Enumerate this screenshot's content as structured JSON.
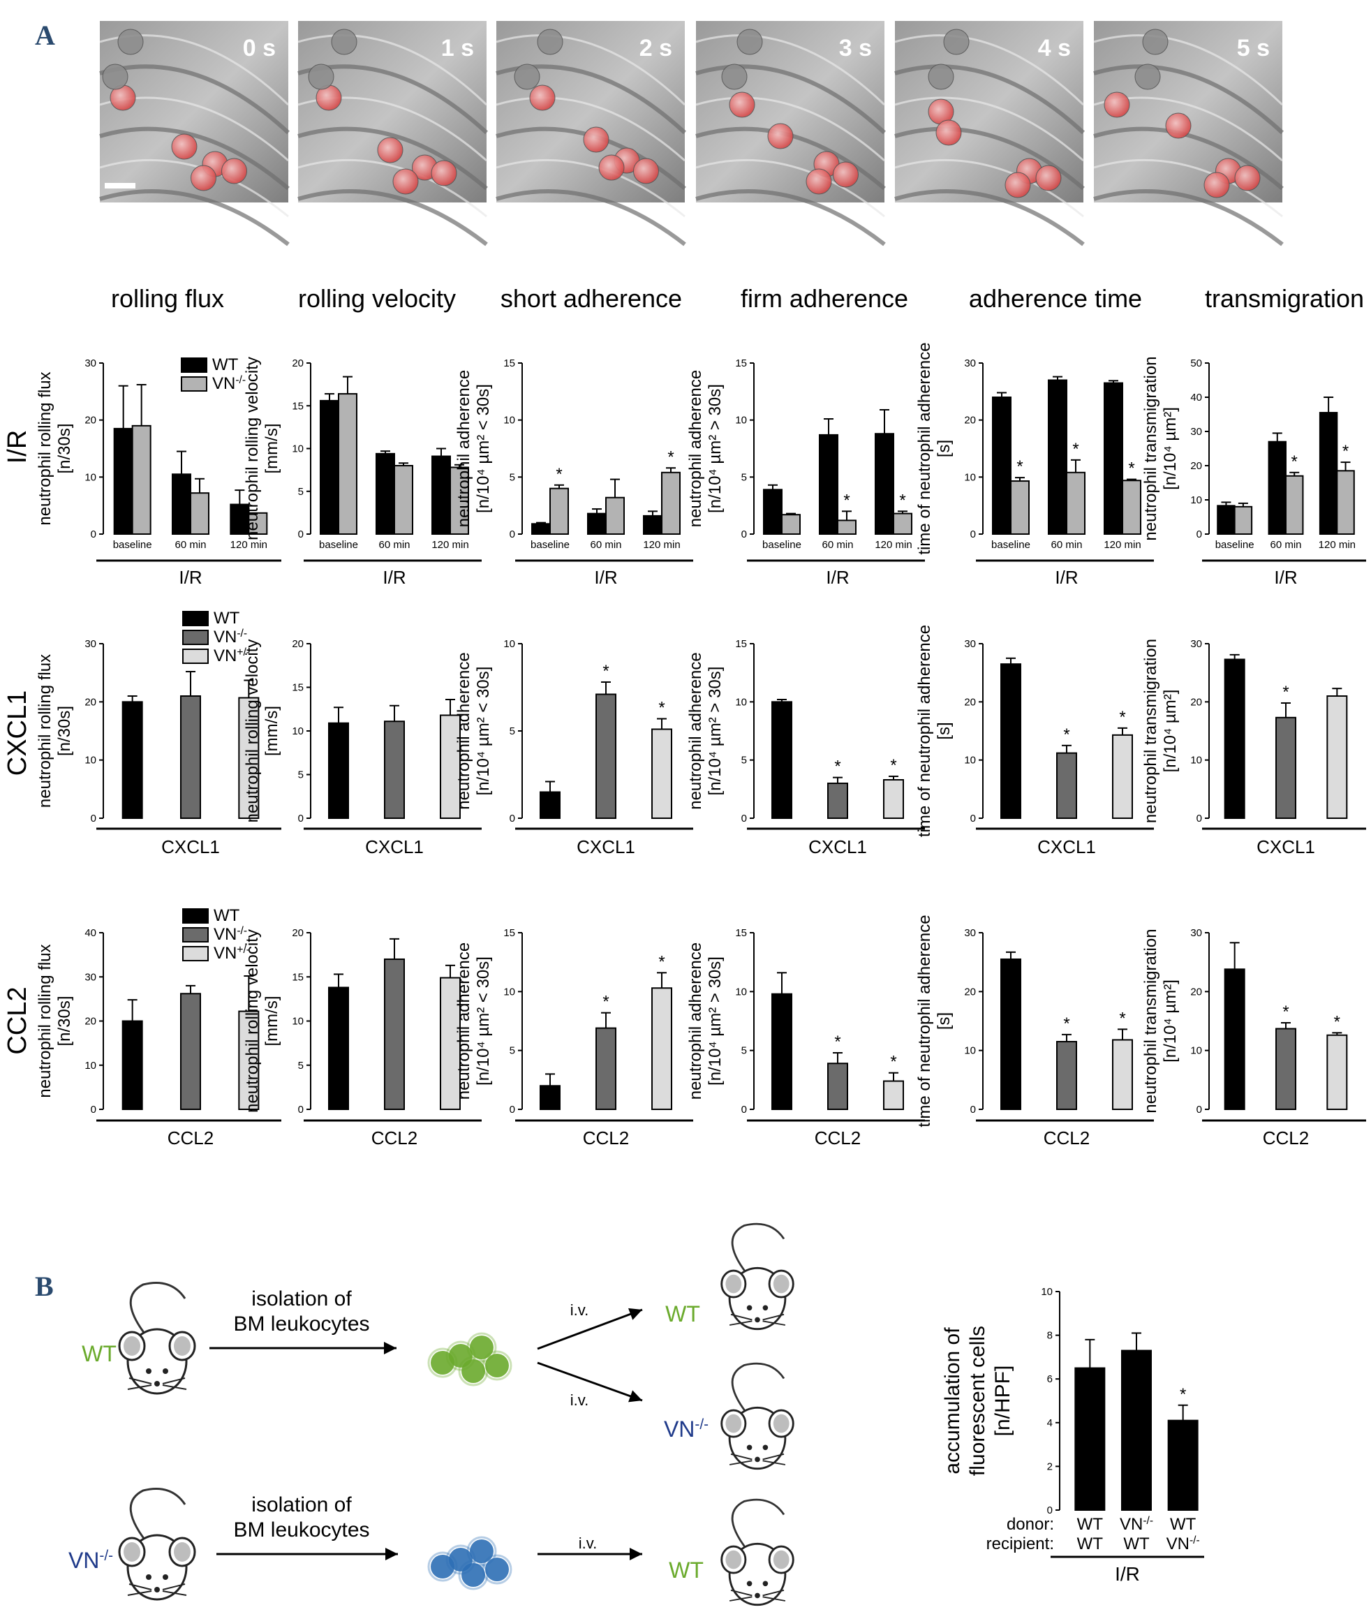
{
  "panel_a": {
    "letter": "A",
    "frames": [
      "0 s",
      "1 s",
      "2 s",
      "3 s",
      "4 s",
      "5 s"
    ],
    "columns": [
      "rolling flux",
      "rolling velocity",
      "short adherence",
      "firm adherence",
      "adherence time",
      "transmigration"
    ],
    "rows": [
      "I/R",
      "CXCL1",
      "CCL2"
    ]
  },
  "legend_row1": {
    "wt": "WT",
    "vn_ko": "VN-/-"
  },
  "legend_row23": {
    "wt": "WT",
    "vn_ko": "VN-/-",
    "vn_het": "VN+/-"
  },
  "colors": {
    "wt": "#000000",
    "vn_ko_row1": "#b3b3b3",
    "vn_ko": "#6b6b6b",
    "vn_het": "#dcdcdc",
    "wt_cells": "#6aaa2c",
    "vn_cells": "#2e6fb5",
    "label_green": "#6aaa2c",
    "label_blue": "#1f3a8a",
    "panel_letter": "#2a4a6e"
  },
  "panel_b": {
    "letter": "B",
    "isolation_line1": "isolation of",
    "isolation_line2": "BM leukocytes",
    "iv": "i.v.",
    "wt": "WT",
    "vn": "VN-/-"
  },
  "chart_data": [
    {
      "type": "bar",
      "row": "I/R",
      "column": "rolling flux",
      "ylabel": [
        "neutrophil rolling flux",
        "[n/30s]"
      ],
      "categories": [
        "baseline",
        "60 min",
        "120 min"
      ],
      "group_label": "I/R",
      "ylim": [
        0,
        30
      ],
      "yticks": [
        0,
        10,
        20,
        30
      ],
      "series": [
        {
          "name": "WT",
          "values": [
            18.5,
            10.5,
            5.2
          ],
          "errors": [
            7.5,
            4.0,
            2.5
          ],
          "sig": [
            false,
            false,
            false
          ]
        },
        {
          "name": "VN-/-",
          "values": [
            19.0,
            7.2,
            3.7
          ],
          "errors": [
            7.2,
            2.5,
            0
          ],
          "sig": [
            false,
            false,
            false
          ]
        }
      ]
    },
    {
      "type": "bar",
      "row": "I/R",
      "column": "rolling velocity",
      "ylabel": [
        "neutrophil rolling velocity",
        "[mm/s]"
      ],
      "categories": [
        "baseline",
        "60 min",
        "120 min"
      ],
      "group_label": "I/R",
      "ylim": [
        0,
        20
      ],
      "yticks": [
        0,
        5,
        10,
        15,
        20
      ],
      "series": [
        {
          "name": "WT",
          "values": [
            15.6,
            9.4,
            9.1
          ],
          "errors": [
            0.8,
            0.3,
            0.9
          ],
          "sig": [
            false,
            false,
            false
          ]
        },
        {
          "name": "VN-/-",
          "values": [
            16.4,
            8.0,
            7.8
          ],
          "errors": [
            2.0,
            0.3,
            0.3
          ],
          "sig": [
            false,
            false,
            false
          ]
        }
      ]
    },
    {
      "type": "bar",
      "row": "I/R",
      "column": "short adherence",
      "ylabel": [
        "neutrophil adherence",
        "[n/10⁴ µm² < 30s]"
      ],
      "categories": [
        "baseline",
        "60 min",
        "120 min"
      ],
      "group_label": "I/R",
      "ylim": [
        0,
        15
      ],
      "yticks": [
        0,
        5,
        10,
        15
      ],
      "series": [
        {
          "name": "WT",
          "values": [
            0.9,
            1.8,
            1.6
          ],
          "errors": [
            0.1,
            0.4,
            0.4
          ],
          "sig": [
            false,
            false,
            false
          ]
        },
        {
          "name": "VN-/-",
          "values": [
            4.0,
            3.2,
            5.4
          ],
          "errors": [
            0.3,
            1.6,
            0.4
          ],
          "sig": [
            true,
            false,
            true
          ]
        }
      ]
    },
    {
      "type": "bar",
      "row": "I/R",
      "column": "firm adherence",
      "ylabel": [
        "neutrophil adherence",
        "[n/10⁴ µm² > 30s]"
      ],
      "categories": [
        "baseline",
        "60 min",
        "120 min"
      ],
      "group_label": "I/R",
      "ylim": [
        0,
        15
      ],
      "yticks": [
        0,
        5,
        10,
        15
      ],
      "series": [
        {
          "name": "WT",
          "values": [
            3.9,
            8.7,
            8.8
          ],
          "errors": [
            0.4,
            1.4,
            2.1
          ],
          "sig": [
            false,
            false,
            false
          ]
        },
        {
          "name": "VN-/-",
          "values": [
            1.7,
            1.2,
            1.8
          ],
          "errors": [
            0.1,
            0.8,
            0.2
          ],
          "sig": [
            false,
            true,
            true
          ]
        }
      ]
    },
    {
      "type": "bar",
      "row": "I/R",
      "column": "adherence time",
      "ylabel": [
        "time of neutrophil adherence",
        "[s]"
      ],
      "categories": [
        "baseline",
        "60 min",
        "120 min"
      ],
      "group_label": "I/R",
      "ylim": [
        0,
        30
      ],
      "yticks": [
        0,
        10,
        20,
        30
      ],
      "series": [
        {
          "name": "WT",
          "values": [
            24.0,
            27.0,
            26.5
          ],
          "errors": [
            0.8,
            0.6,
            0.4
          ],
          "sig": [
            false,
            false,
            false
          ]
        },
        {
          "name": "VN-/-",
          "values": [
            9.3,
            10.8,
            9.4
          ],
          "errors": [
            0.6,
            2.2,
            0.2
          ],
          "sig": [
            true,
            true,
            true
          ]
        }
      ]
    },
    {
      "type": "bar",
      "row": "I/R",
      "column": "transmigration",
      "ylabel": [
        "neutrophil transmigration",
        "[n/10⁴ µm²]"
      ],
      "categories": [
        "baseline",
        "60 min",
        "120 min"
      ],
      "group_label": "I/R",
      "ylim": [
        0,
        50
      ],
      "yticks": [
        0,
        10,
        20,
        30,
        40,
        50
      ],
      "series": [
        {
          "name": "WT",
          "values": [
            8.3,
            27.0,
            35.5
          ],
          "errors": [
            1.0,
            2.5,
            4.5
          ],
          "sig": [
            false,
            false,
            false
          ]
        },
        {
          "name": "VN-/-",
          "values": [
            8.0,
            17.0,
            18.5
          ],
          "errors": [
            1.0,
            1.0,
            2.5
          ],
          "sig": [
            false,
            true,
            true
          ]
        }
      ]
    },
    {
      "type": "bar",
      "row": "CXCL1",
      "column": "rolling flux",
      "ylabel": [
        "neutrophil rolling flux",
        "[n/30s]"
      ],
      "categories": [
        "WT",
        "VN-/-",
        "VN+/-"
      ],
      "group_label": "CXCL1",
      "ylim": [
        0,
        30
      ],
      "yticks": [
        0,
        10,
        20,
        30
      ],
      "values": [
        20.0,
        21.0,
        20.7
      ],
      "errors": [
        1.0,
        4.2,
        3.0
      ],
      "sig": [
        false,
        false,
        false
      ]
    },
    {
      "type": "bar",
      "row": "CXCL1",
      "column": "rolling velocity",
      "ylabel": [
        "neutrophil rolling velocity",
        "[mm/s]"
      ],
      "categories": [
        "WT",
        "VN-/-",
        "VN+/-"
      ],
      "group_label": "CXCL1",
      "ylim": [
        0,
        20
      ],
      "yticks": [
        0,
        5,
        10,
        15,
        20
      ],
      "values": [
        10.9,
        11.1,
        11.8
      ],
      "errors": [
        1.8,
        1.8,
        1.8
      ],
      "sig": [
        false,
        false,
        false
      ]
    },
    {
      "type": "bar",
      "row": "CXCL1",
      "column": "short adherence",
      "ylabel": [
        "neutrophil adherence",
        "[n/10⁴ µm² < 30s]"
      ],
      "categories": [
        "WT",
        "VN-/-",
        "VN+/-"
      ],
      "group_label": "CXCL1",
      "ylim": [
        0,
        10
      ],
      "yticks": [
        0,
        5,
        10
      ],
      "values": [
        1.5,
        7.1,
        5.1
      ],
      "errors": [
        0.6,
        0.7,
        0.6
      ],
      "sig": [
        false,
        true,
        true
      ]
    },
    {
      "type": "bar",
      "row": "CXCL1",
      "column": "firm adherence",
      "ylabel": [
        "neutrophil adherence",
        "[n/10⁴ µm² > 30s]"
      ],
      "categories": [
        "WT",
        "VN-/-",
        "VN+/-"
      ],
      "group_label": "CXCL1",
      "ylim": [
        0,
        15
      ],
      "yticks": [
        0,
        5,
        10,
        15
      ],
      "values": [
        10.0,
        3.0,
        3.3
      ],
      "errors": [
        0.2,
        0.5,
        0.3
      ],
      "sig": [
        false,
        true,
        true
      ]
    },
    {
      "type": "bar",
      "row": "CXCL1",
      "column": "adherence time",
      "ylabel": [
        "time of neutrophil adherence",
        "[s]"
      ],
      "categories": [
        "WT",
        "VN-/-",
        "VN+/-"
      ],
      "group_label": "CXCL1",
      "ylim": [
        0,
        30
      ],
      "yticks": [
        0,
        10,
        20,
        30
      ],
      "values": [
        26.5,
        11.2,
        14.3
      ],
      "errors": [
        1.0,
        1.3,
        1.2
      ],
      "sig": [
        false,
        true,
        true
      ]
    },
    {
      "type": "bar",
      "row": "CXCL1",
      "column": "transmigration",
      "ylabel": [
        "neutrophil transmigration",
        "[n/10⁴ µm²]"
      ],
      "categories": [
        "WT",
        "VN-/-",
        "VN+/-"
      ],
      "group_label": "CXCL1",
      "ylim": [
        0,
        30
      ],
      "yticks": [
        0,
        10,
        20,
        30
      ],
      "values": [
        27.3,
        17.3,
        21.0
      ],
      "errors": [
        0.8,
        2.5,
        1.3
      ],
      "sig": [
        false,
        true,
        false
      ]
    },
    {
      "type": "bar",
      "row": "CCL2",
      "column": "rolling flux",
      "ylabel": [
        "neutrophil rolling flux",
        "[n/30s]"
      ],
      "categories": [
        "WT",
        "VN-/-",
        "VN+/-"
      ],
      "group_label": "CCL2",
      "ylim": [
        0,
        40
      ],
      "yticks": [
        0,
        10,
        20,
        30,
        40
      ],
      "values": [
        20.0,
        26.2,
        22.2
      ],
      "errors": [
        4.8,
        1.8,
        8.0
      ],
      "sig": [
        false,
        false,
        false
      ]
    },
    {
      "type": "bar",
      "row": "CCL2",
      "column": "rolling velocity",
      "ylabel": [
        "neutrophil rolling velocity",
        "[mm/s]"
      ],
      "categories": [
        "WT",
        "VN-/-",
        "VN+/-"
      ],
      "group_label": "CCL2",
      "ylim": [
        0,
        20
      ],
      "yticks": [
        0,
        5,
        10,
        15,
        20
      ],
      "values": [
        13.8,
        17.0,
        14.9
      ],
      "errors": [
        1.5,
        2.3,
        1.4
      ],
      "sig": [
        false,
        false,
        false
      ]
    },
    {
      "type": "bar",
      "row": "CCL2",
      "column": "short adherence",
      "ylabel": [
        "neutrophil adherence",
        "[n/10⁴ µm² < 30s]"
      ],
      "categories": [
        "WT",
        "VN-/-",
        "VN+/-"
      ],
      "group_label": "CCL2",
      "ylim": [
        0,
        15
      ],
      "yticks": [
        0,
        5,
        10,
        15
      ],
      "values": [
        2.0,
        6.9,
        10.3
      ],
      "errors": [
        1.0,
        1.3,
        1.3
      ],
      "sig": [
        false,
        true,
        true
      ]
    },
    {
      "type": "bar",
      "row": "CCL2",
      "column": "firm adherence",
      "ylabel": [
        "neutrophil adherence",
        "[n/10⁴ µm² > 30s]"
      ],
      "categories": [
        "WT",
        "VN-/-",
        "VN+/-"
      ],
      "group_label": "CCL2",
      "ylim": [
        0,
        15
      ],
      "yticks": [
        0,
        5,
        10,
        15
      ],
      "values": [
        9.8,
        3.9,
        2.4
      ],
      "errors": [
        1.8,
        0.9,
        0.7
      ],
      "sig": [
        false,
        true,
        true
      ]
    },
    {
      "type": "bar",
      "row": "CCL2",
      "column": "adherence time",
      "ylabel": [
        "time of neutrophil adherence",
        "[s]"
      ],
      "categories": [
        "WT",
        "VN-/-",
        "VN+/-"
      ],
      "group_label": "CCL2",
      "ylim": [
        0,
        30
      ],
      "yticks": [
        0,
        10,
        20,
        30
      ],
      "values": [
        25.5,
        11.5,
        11.8
      ],
      "errors": [
        1.2,
        1.2,
        1.8
      ],
      "sig": [
        false,
        true,
        true
      ]
    },
    {
      "type": "bar",
      "row": "CCL2",
      "column": "transmigration",
      "ylabel": [
        "neutrophil transmigration",
        "[n/10⁴ µm²]"
      ],
      "categories": [
        "WT",
        "VN-/-",
        "VN+/-"
      ],
      "group_label": "CCL2",
      "ylim": [
        0,
        30
      ],
      "yticks": [
        0,
        10,
        20,
        30
      ],
      "values": [
        23.8,
        13.7,
        12.6
      ],
      "errors": [
        4.5,
        1.0,
        0.4
      ],
      "sig": [
        false,
        true,
        true
      ]
    },
    {
      "type": "bar",
      "panel": "B",
      "ylabel": [
        "accumulation of",
        "fluorescent cells",
        "[n/HPF]"
      ],
      "row_labels": [
        "donor:",
        "recipient:"
      ],
      "donor": [
        "WT",
        "VN-/-",
        "WT"
      ],
      "recipient": [
        "WT",
        "WT",
        "VN-/-"
      ],
      "group_label": "I/R",
      "ylim": [
        0,
        10
      ],
      "yticks": [
        0,
        2,
        4,
        6,
        8,
        10
      ],
      "values": [
        6.5,
        7.3,
        4.1
      ],
      "errors": [
        1.3,
        0.8,
        0.7
      ],
      "sig": [
        false,
        false,
        true
      ]
    }
  ]
}
